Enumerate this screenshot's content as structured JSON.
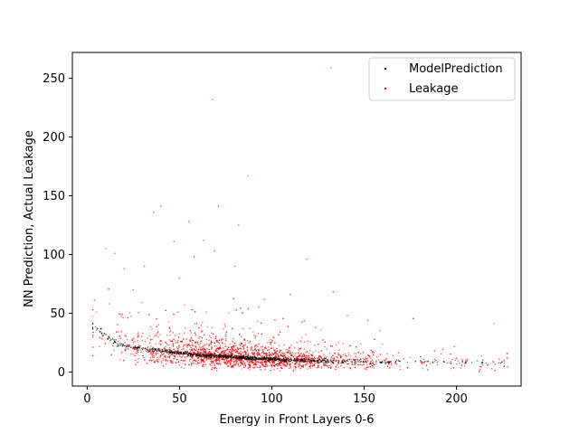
{
  "chart_data": {
    "type": "scatter",
    "xlabel": "Energy in Front Layers 0-6",
    "ylabel": "NN Prediction, Actual Leakage",
    "xlim": [
      -8,
      235
    ],
    "ylim": [
      -12,
      272
    ],
    "x_ticks": [
      0,
      50,
      100,
      150,
      200
    ],
    "y_ticks": [
      0,
      50,
      100,
      150,
      200,
      250
    ],
    "x_tick_labels": [
      "0",
      "50",
      "100",
      "150",
      "200"
    ],
    "y_tick_labels": [
      "0",
      "50",
      "100",
      "150",
      "200",
      "250"
    ],
    "grid": false,
    "legend_position": "top-right",
    "series": [
      {
        "name": "ModelPrediction",
        "color": "#000000",
        "marker": "dot",
        "trend": {
          "description": "tight decreasing curve",
          "points": [
            [
              4,
              38
            ],
            [
              10,
              32
            ],
            [
              15,
              25
            ],
            [
              20,
              22
            ],
            [
              30,
              20
            ],
            [
              40,
              18
            ],
            [
              50,
              16
            ],
            [
              60,
              14.5
            ],
            [
              70,
              13.5
            ],
            [
              80,
              12.5
            ],
            [
              90,
              11.5
            ],
            [
              100,
              10.8
            ],
            [
              110,
              10.2
            ],
            [
              120,
              9.8
            ],
            [
              130,
              9.4
            ],
            [
              140,
              9.1
            ],
            [
              150,
              8.9
            ],
            [
              160,
              8.7
            ],
            [
              170,
              8.5
            ],
            [
              180,
              8.4
            ],
            [
              190,
              8.3
            ],
            [
              200,
              8.2
            ],
            [
              210,
              8.1
            ],
            [
              220,
              8.0
            ],
            [
              227,
              8.0
            ]
          ]
        }
      },
      {
        "name": "Leakage",
        "color": "#ff0000",
        "marker": "dot",
        "notable_points": [
          [
            132,
            259
          ],
          [
            68,
            232
          ],
          [
            87,
            167
          ],
          [
            40,
            141
          ],
          [
            36,
            136
          ],
          [
            55,
            128
          ],
          [
            71,
            141
          ],
          [
            82,
            125
          ],
          [
            10,
            105
          ],
          [
            63,
            112
          ],
          [
            47,
            111
          ],
          [
            69,
            103
          ],
          [
            20,
            88
          ],
          [
            58,
            98
          ],
          [
            15,
            101
          ],
          [
            119,
            96
          ],
          [
            4,
            61
          ],
          [
            12,
            58
          ],
          [
            31,
            90
          ],
          [
            50,
            80
          ],
          [
            80,
            90
          ],
          [
            25,
            70
          ],
          [
            96,
            62
          ],
          [
            110,
            66
          ],
          [
            141,
            48
          ],
          [
            152,
            44
          ]
        ]
      }
    ]
  }
}
